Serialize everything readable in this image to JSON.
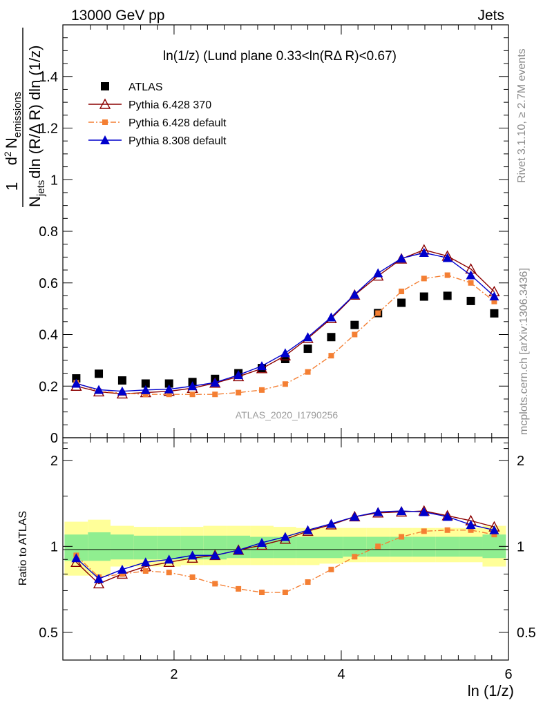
{
  "header": {
    "left": "13000 GeV pp",
    "right": "Jets"
  },
  "side_labels": {
    "rivet": "Rivet 3.1.10, ≥ 2.7M events",
    "mcplots": "mcplots.cern.ch [arXiv:1306.3436]"
  },
  "main_title": "ln(1/z) (Lund plane 0.33<ln(RΔ R)<0.67)",
  "analysis_id": "ATLAS_2020_I1790256",
  "axes": {
    "xlabel": "ln (1/z)",
    "ylabel_top": "1/N_jets dln (R/Δ R) dln (1/z) d² N_emissions",
    "ylabel_top_parts": {
      "one": "1",
      "njets": "N",
      "jets_sub": "jets",
      "denom_rest": "dln (R/Δ R) dln (1/z)",
      "d": "d",
      "sup2": "2",
      "n_emis": "N",
      "emis_sub": "emissions"
    },
    "ylabel_bottom": "Ratio to ATLAS",
    "top_ticks": [
      "0",
      "0.2",
      "0.4",
      "0.6",
      "0.8",
      "1",
      "1.2",
      "1.4"
    ],
    "bottom_ticks": [
      "0.5",
      "1",
      "2"
    ],
    "x_ticks": [
      "2",
      "4",
      "6"
    ]
  },
  "legend": [
    {
      "label": "ATLAS",
      "color": "#000000",
      "marker": "filled-square"
    },
    {
      "label": "Pythia 6.428 370",
      "color": "#8b0000",
      "marker": "open-triangle"
    },
    {
      "label": "Pythia 6.428 default",
      "color": "#f47f33",
      "marker": "small-square",
      "dash": "dashdot"
    },
    {
      "label": "Pythia 8.308 default",
      "color": "#0000cc",
      "marker": "filled-triangle"
    }
  ],
  "chart_data": {
    "type": "line",
    "xlim": [
      0.67,
      6.0
    ],
    "ylim_top": [
      0,
      1.6
    ],
    "ylim_ratio": [
      0.4,
      2.4
    ],
    "ratio_scale": "log",
    "x": [
      0.83,
      1.1,
      1.38,
      1.66,
      1.94,
      2.22,
      2.49,
      2.77,
      3.05,
      3.33,
      3.6,
      3.88,
      4.16,
      4.44,
      4.72,
      4.99,
      5.27,
      5.55,
      5.83
    ],
    "x_edges": [
      0.69,
      0.97,
      1.24,
      1.52,
      1.8,
      2.08,
      2.35,
      2.63,
      2.91,
      3.19,
      3.46,
      3.74,
      4.02,
      4.3,
      4.58,
      4.85,
      5.13,
      5.41,
      5.69,
      5.97
    ],
    "series": [
      {
        "name": "ATLAS",
        "values": [
          0.23,
          0.248,
          0.222,
          0.21,
          0.21,
          0.216,
          0.228,
          0.25,
          0.27,
          0.305,
          0.345,
          0.39,
          0.437,
          0.483,
          0.523,
          0.547,
          0.55,
          0.53,
          0.482
        ]
      },
      {
        "name": "Pythia 6.428 370",
        "values": [
          0.2,
          0.178,
          0.17,
          0.175,
          0.18,
          0.192,
          0.212,
          0.237,
          0.268,
          0.318,
          0.385,
          0.462,
          0.553,
          0.627,
          0.693,
          0.728,
          0.704,
          0.654,
          0.566
        ]
      },
      {
        "name": "Pythia 6.428 default",
        "values": [
          0.213,
          0.18,
          0.173,
          0.168,
          0.168,
          0.168,
          0.168,
          0.175,
          0.185,
          0.208,
          0.255,
          0.318,
          0.4,
          0.483,
          0.567,
          0.617,
          0.63,
          0.6,
          0.528
        ]
      },
      {
        "name": "Pythia 8.308 default",
        "values": [
          0.21,
          0.186,
          0.18,
          0.185,
          0.188,
          0.2,
          0.214,
          0.243,
          0.278,
          0.328,
          0.39,
          0.467,
          0.555,
          0.638,
          0.695,
          0.717,
          0.697,
          0.63,
          0.548
        ]
      }
    ],
    "ratio_series": [
      {
        "name": "Pythia 6.428 370",
        "values": [
          0.88,
          0.74,
          0.8,
          0.85,
          0.88,
          0.91,
          0.93,
          0.97,
          1.01,
          1.06,
          1.13,
          1.19,
          1.27,
          1.31,
          1.32,
          1.33,
          1.28,
          1.23,
          1.17
        ]
      },
      {
        "name": "Pythia 6.428 default",
        "values": [
          0.93,
          0.78,
          0.8,
          0.82,
          0.81,
          0.78,
          0.74,
          0.71,
          0.69,
          0.69,
          0.75,
          0.83,
          0.92,
          1.0,
          1.08,
          1.13,
          1.14,
          1.14,
          1.1
        ]
      },
      {
        "name": "Pythia 8.308 default",
        "values": [
          0.91,
          0.77,
          0.83,
          0.88,
          0.9,
          0.93,
          0.93,
          0.97,
          1.03,
          1.08,
          1.14,
          1.2,
          1.27,
          1.32,
          1.33,
          1.32,
          1.27,
          1.19,
          1.14
        ]
      }
    ],
    "bands": {
      "inner_low": [
        0.89,
        0.89,
        0.9,
        0.9,
        0.9,
        0.9,
        0.9,
        0.91,
        0.91,
        0.91,
        0.91,
        0.91,
        0.92,
        0.92,
        0.92,
        0.92,
        0.92,
        0.92,
        0.91
      ],
      "inner_high": [
        1.1,
        1.12,
        1.1,
        1.09,
        1.09,
        1.09,
        1.09,
        1.09,
        1.08,
        1.08,
        1.08,
        1.08,
        1.08,
        1.08,
        1.08,
        1.08,
        1.08,
        1.08,
        1.1
      ],
      "outer_low": [
        0.79,
        0.79,
        0.85,
        0.85,
        0.85,
        0.86,
        0.86,
        0.86,
        0.86,
        0.86,
        0.86,
        0.87,
        0.88,
        0.88,
        0.88,
        0.88,
        0.88,
        0.88,
        0.85
      ],
      "outer_high": [
        1.22,
        1.24,
        1.18,
        1.17,
        1.17,
        1.17,
        1.18,
        1.18,
        1.18,
        1.17,
        1.16,
        1.16,
        1.16,
        1.16,
        1.16,
        1.16,
        1.16,
        1.16,
        1.18
      ]
    },
    "colors": {
      "band_inner": "#90ee90",
      "band_outer": "#ffff99",
      "ATLAS": "#000000",
      "Pythia 6.428 370": "#8b0000",
      "Pythia 6.428 default": "#f47f33",
      "Pythia 8.308 default": "#0000cc"
    }
  }
}
